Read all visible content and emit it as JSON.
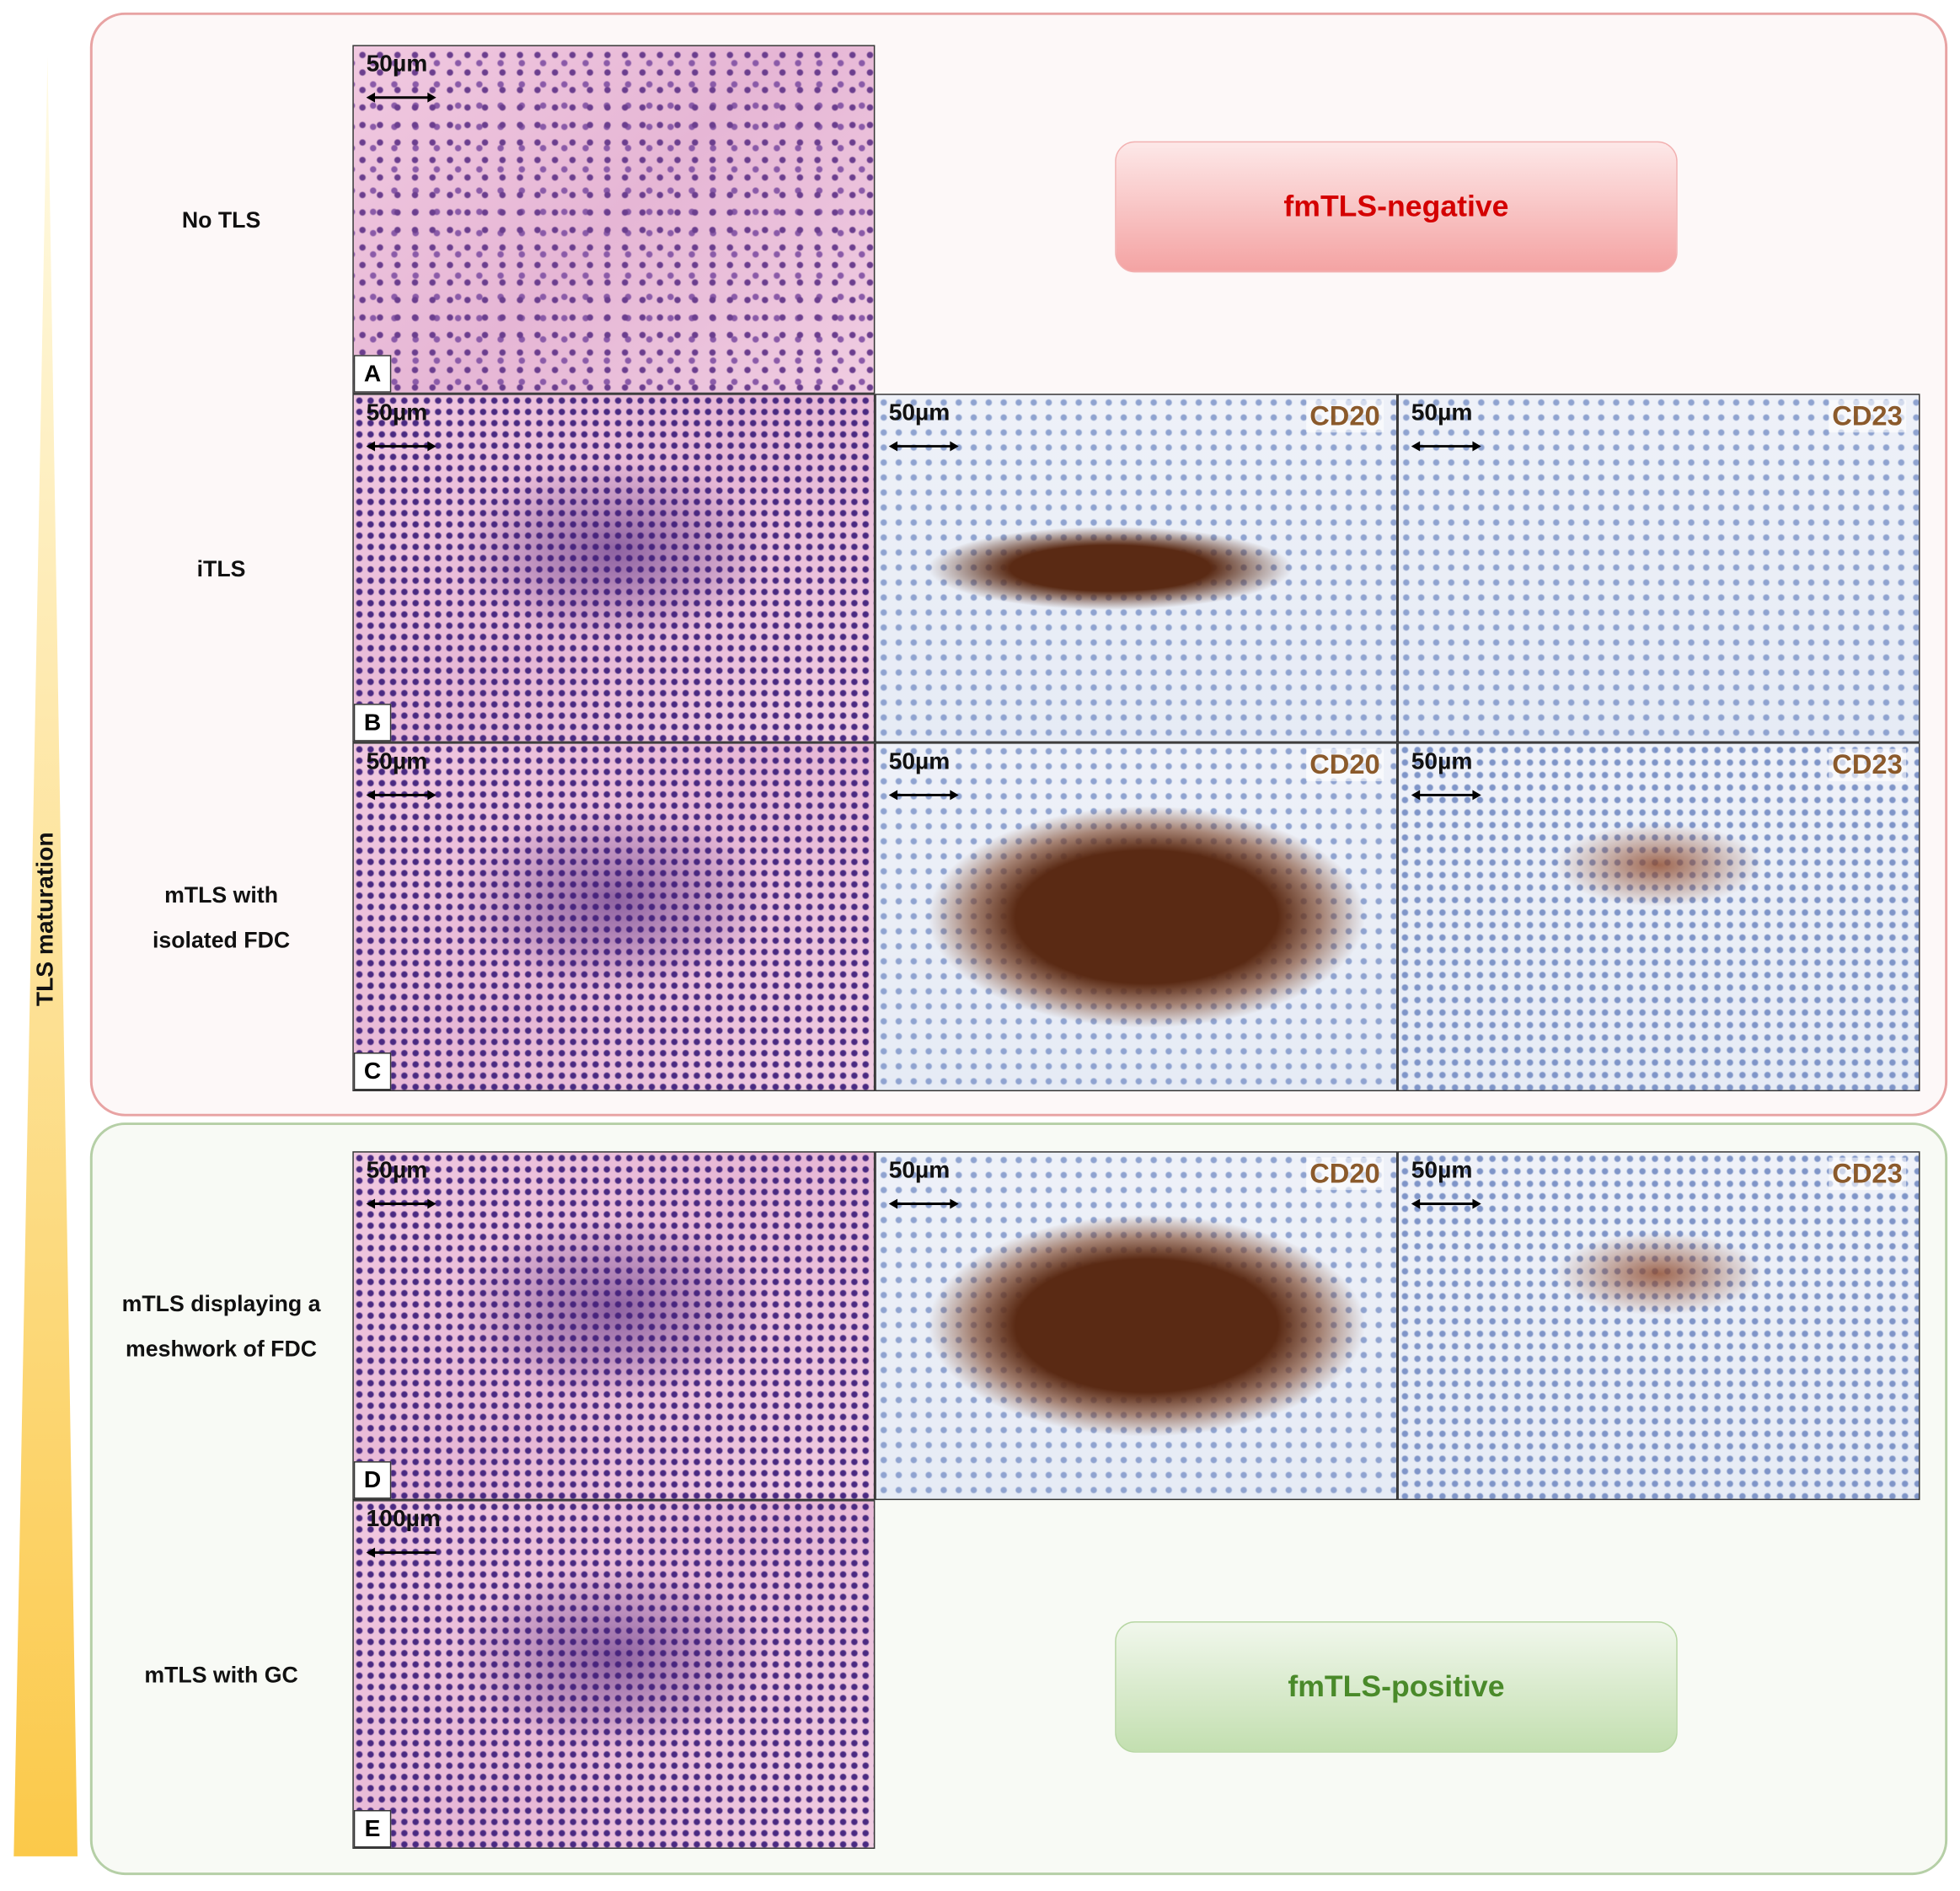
{
  "axis_label": "TLS maturation",
  "groups": [
    {
      "label": "fmTLS-negative",
      "rows": [
        {
          "label": [
            "No TLS"
          ],
          "panels": [
            {
              "scale_bar": "50µm",
              "letter": "A"
            }
          ]
        },
        {
          "label": [
            "iTLS"
          ],
          "panels": [
            {
              "scale_bar": "50µm",
              "letter": "B"
            },
            {
              "scale_bar": "50µm",
              "stain": "CD20"
            },
            {
              "scale_bar": "50µm",
              "stain": "CD23"
            }
          ]
        },
        {
          "label": [
            "mTLS with",
            "isolated FDC"
          ],
          "panels": [
            {
              "scale_bar": "50µm",
              "letter": "C"
            },
            {
              "scale_bar": "50µm",
              "stain": "CD20"
            },
            {
              "scale_bar": "50µm",
              "stain": "CD23"
            }
          ]
        }
      ]
    },
    {
      "label": "fmTLS-positive",
      "rows": [
        {
          "label": [
            "mTLS displaying a",
            "meshwork of FDC"
          ],
          "panels": [
            {
              "scale_bar": "50µm",
              "letter": "D"
            },
            {
              "scale_bar": "50µm",
              "stain": "CD20"
            },
            {
              "scale_bar": "50µm",
              "stain": "CD23"
            }
          ]
        },
        {
          "label": [
            "mTLS with GC"
          ],
          "panels": [
            {
              "scale_bar": "100µm",
              "letter": "E"
            }
          ]
        }
      ]
    }
  ]
}
